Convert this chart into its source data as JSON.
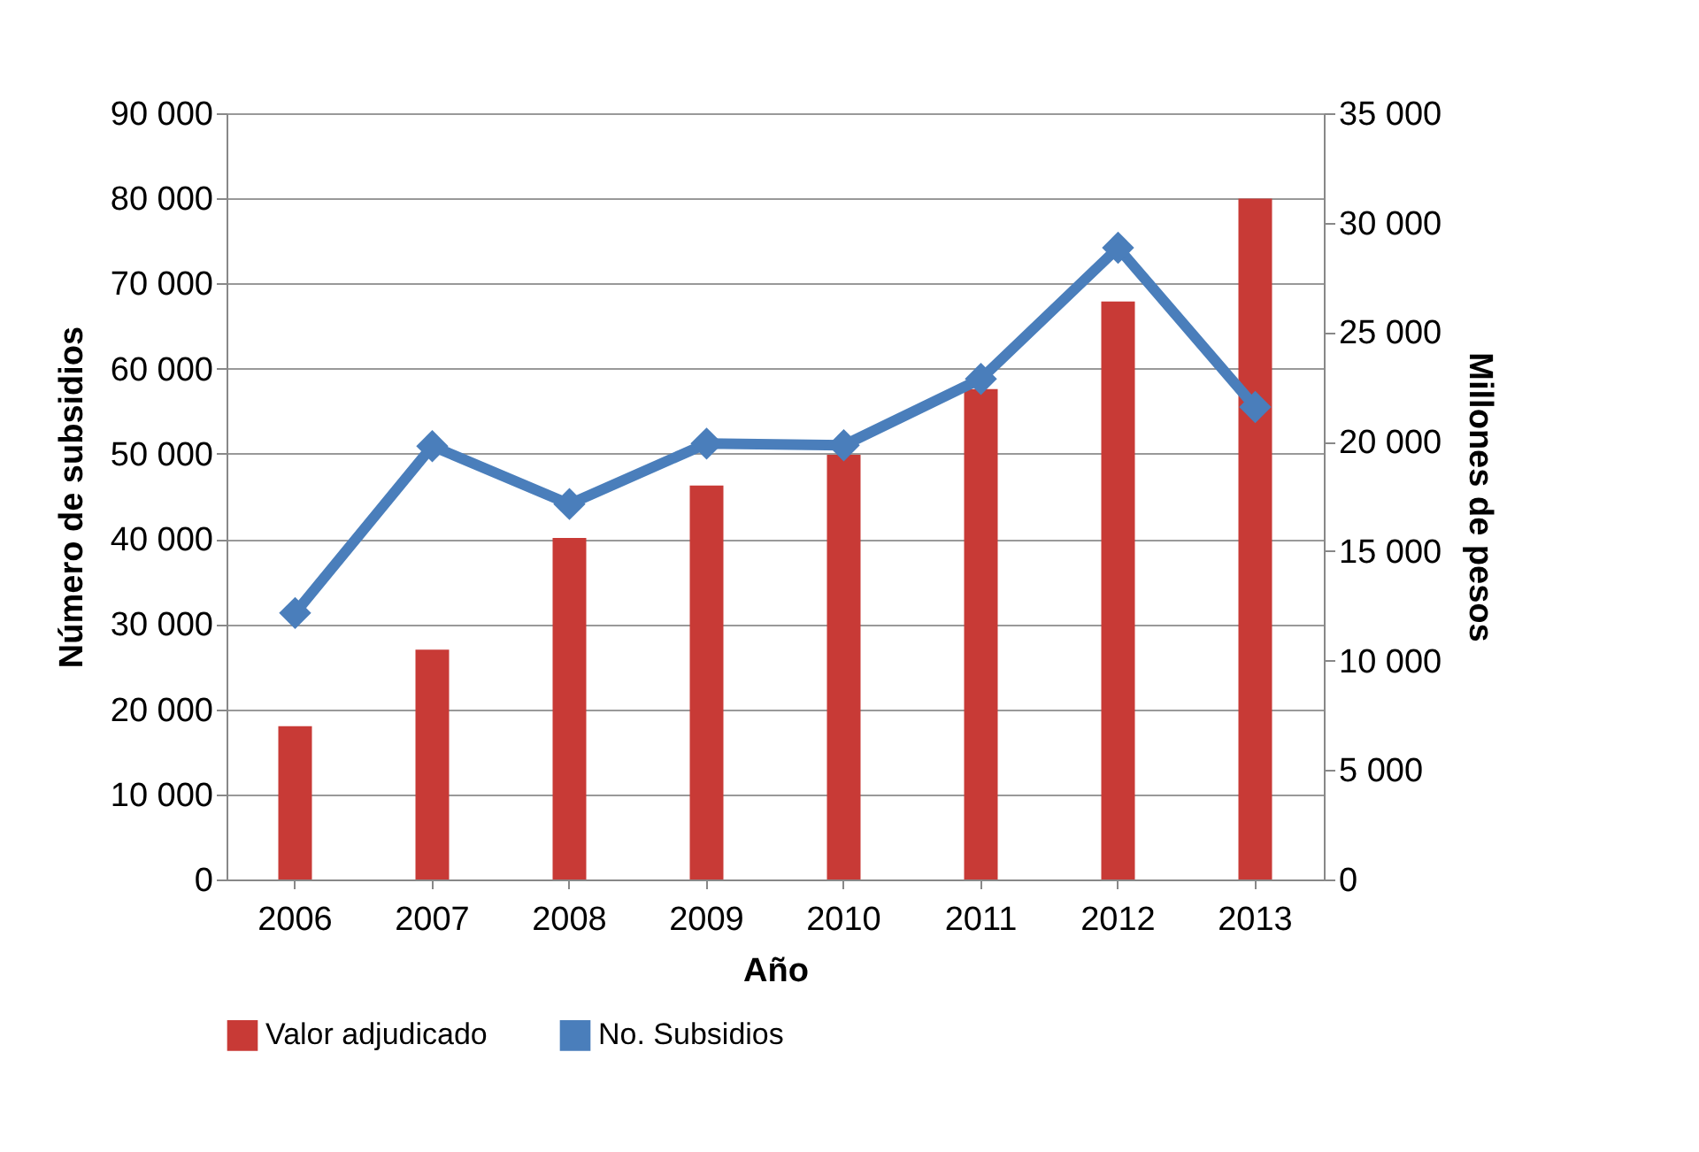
{
  "chart_data": {
    "type": "bar",
    "xlabel": "Año",
    "ylabel": "Número de subsidios",
    "y2label": "Millones de pesos",
    "categories": [
      "2006",
      "2007",
      "2008",
      "2009",
      "2010",
      "2011",
      "2012",
      "2013"
    ],
    "series": [
      {
        "name": "Valor adjudicado",
        "axis": "y2",
        "color": "#c83a36",
        "values": [
          7000,
          10500,
          15600,
          18000,
          19400,
          22400,
          26400,
          31100
        ]
      },
      {
        "name": "No. Subsidios",
        "type": "line",
        "axis": "y",
        "color": "#4a7ebb",
        "marker": "diamond",
        "values": [
          31300,
          50900,
          44100,
          51200,
          51000,
          58800,
          74200,
          55500
        ]
      }
    ],
    "ylim": [
      0,
      90000
    ],
    "yticks": [
      {
        "value": 0,
        "label": "0"
      },
      {
        "value": 10000,
        "label": "10 000"
      },
      {
        "value": 20000,
        "label": "20 000"
      },
      {
        "value": 30000,
        "label": "30 000"
      },
      {
        "value": 40000,
        "label": "40 000"
      },
      {
        "value": 50000,
        "label": "50 000"
      },
      {
        "value": 60000,
        "label": "60 000"
      },
      {
        "value": 70000,
        "label": "70 000"
      },
      {
        "value": 80000,
        "label": "80 000"
      },
      {
        "value": 90000,
        "label": "90 000"
      }
    ],
    "y2lim": [
      0,
      35000
    ],
    "y2ticks": [
      {
        "value": 0,
        "label": "0"
      },
      {
        "value": 5000,
        "label": "5 000"
      },
      {
        "value": 10000,
        "label": "10 000"
      },
      {
        "value": 15000,
        "label": "15 000"
      },
      {
        "value": 20000,
        "label": "20 000"
      },
      {
        "value": 25000,
        "label": "25 000"
      },
      {
        "value": 30000,
        "label": "30 000"
      },
      {
        "value": 35000,
        "label": "35 000"
      }
    ],
    "grid": "y",
    "legend": "bottom"
  }
}
